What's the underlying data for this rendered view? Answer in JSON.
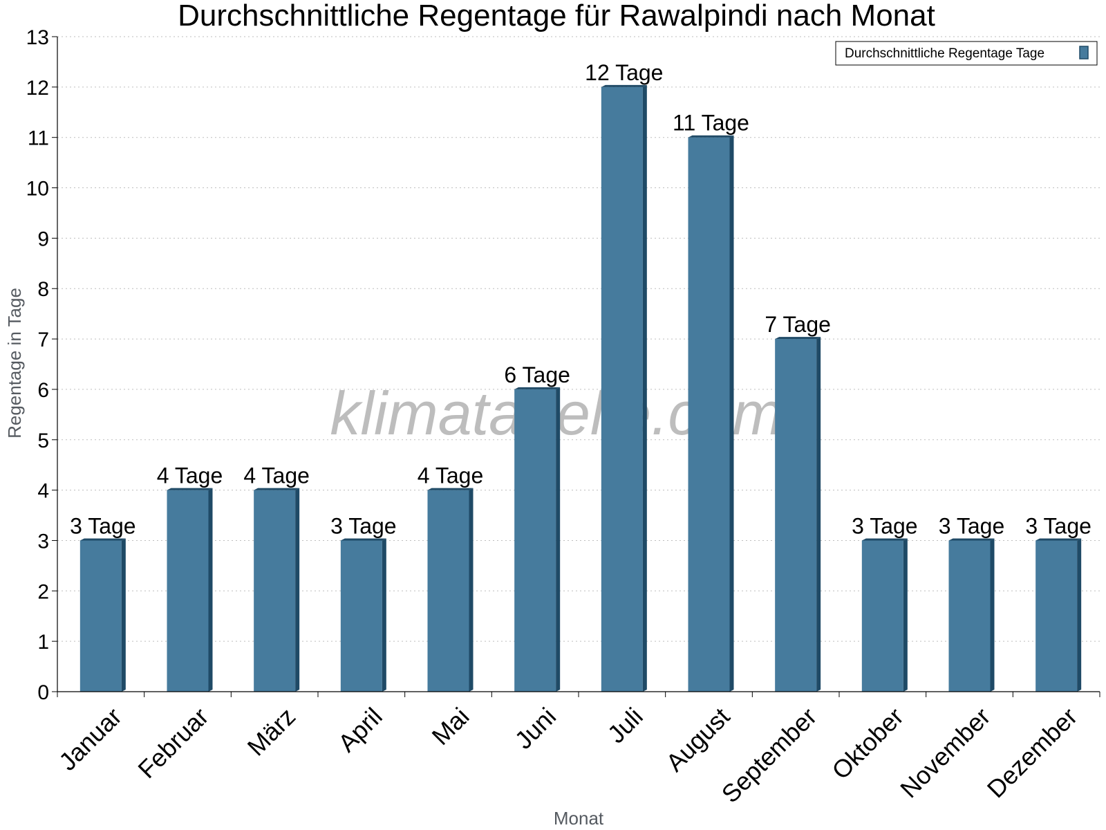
{
  "chart_data": {
    "type": "bar",
    "title": "Durchschnittliche Regentage für Rawalpindi nach Monat",
    "xlabel": "Monat",
    "ylabel": "Regentage in Tage",
    "ylim": [
      0,
      13
    ],
    "yticks": [
      "0",
      "1",
      "2",
      "3",
      "4",
      "5",
      "6",
      "7",
      "8",
      "9",
      "10",
      "11",
      "12",
      "13"
    ],
    "categories": [
      "Januar",
      "Februar",
      "März",
      "April",
      "Mai",
      "Juni",
      "Juli",
      "August",
      "September",
      "Oktober",
      "November",
      "Dezember"
    ],
    "series": [
      {
        "name": "Durchschnittliche Regentage Tage",
        "values": [
          3,
          4,
          4,
          3,
          4,
          6,
          12,
          11,
          7,
          3,
          3,
          3
        ],
        "data_labels": [
          "3 Tage",
          "4 Tage",
          "4 Tage",
          "3 Tage",
          "4 Tage",
          "6 Tage",
          "12 Tage",
          "11 Tage",
          "7 Tage",
          "3 Tage",
          "3 Tage",
          "3 Tage"
        ]
      }
    ],
    "grid": "horizontal-dotted",
    "legend_position": "top-right",
    "colors": {
      "bar": "#467b9d",
      "bar_side": "#1f4a66",
      "bar_top": "#1f4a66"
    }
  },
  "watermark": "klimatabelle.com"
}
